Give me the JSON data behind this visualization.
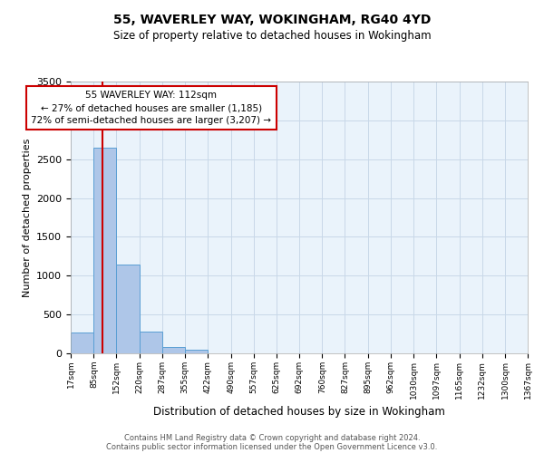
{
  "title1": "55, WAVERLEY WAY, WOKINGHAM, RG40 4YD",
  "title2": "Size of property relative to detached houses in Wokingham",
  "xlabel": "Distribution of detached houses by size in Wokingham",
  "ylabel": "Number of detached properties",
  "bin_labels": [
    "17sqm",
    "85sqm",
    "152sqm",
    "220sqm",
    "287sqm",
    "355sqm",
    "422sqm",
    "490sqm",
    "557sqm",
    "625sqm",
    "692sqm",
    "760sqm",
    "827sqm",
    "895sqm",
    "962sqm",
    "1030sqm",
    "1097sqm",
    "1165sqm",
    "1232sqm",
    "1300sqm",
    "1367sqm"
  ],
  "bar_heights": [
    270,
    2650,
    1140,
    275,
    80,
    45,
    0,
    0,
    0,
    0,
    0,
    0,
    0,
    0,
    0,
    0,
    0,
    0,
    0,
    0
  ],
  "bar_color": "#aec6e8",
  "bar_edge_color": "#5a9fd4",
  "grid_color": "#c8d8e8",
  "background_color": "#eaf3fb",
  "annotation_line1": "55 WAVERLEY WAY: 112sqm",
  "annotation_line2": "← 27% of detached houses are smaller (1,185)",
  "annotation_line3": "72% of semi-detached houses are larger (3,207) →",
  "annotation_box_color": "#ffffff",
  "annotation_box_edge_color": "#cc0000",
  "vline_x": 112,
  "vline_color": "#cc0000",
  "ylim": [
    0,
    3500
  ],
  "yticks": [
    0,
    500,
    1000,
    1500,
    2000,
    2500,
    3000,
    3500
  ],
  "footer1": "Contains HM Land Registry data © Crown copyright and database right 2024.",
  "footer2": "Contains public sector information licensed under the Open Government Licence v3.0.",
  "bin_edges": [
    17,
    85,
    152,
    220,
    287,
    355,
    422,
    490,
    557,
    625,
    692,
    760,
    827,
    895,
    962,
    1030,
    1097,
    1165,
    1232,
    1300,
    1367
  ]
}
